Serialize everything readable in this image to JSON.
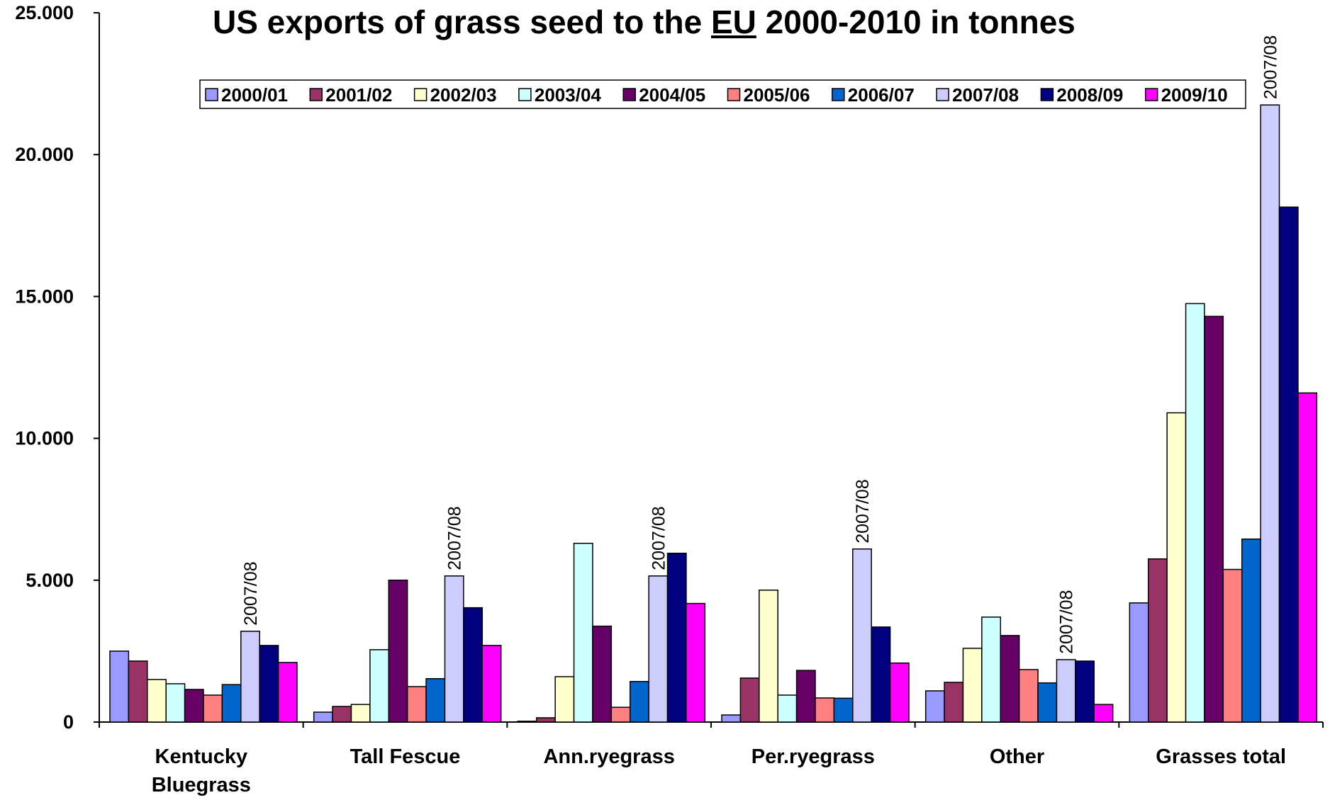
{
  "chart_data": {
    "type": "bar",
    "title": {
      "prefix": "US exports of grass seed to the ",
      "underlined": "EU",
      "suffix": " 2000-2010 in tonnes"
    },
    "xlabel": "",
    "ylabel": "",
    "ylim": [
      0,
      25000
    ],
    "y_ticks": [
      {
        "value": 0,
        "label": "0"
      },
      {
        "value": 5000,
        "label": "5.000"
      },
      {
        "value": 10000,
        "label": "10.000"
      },
      {
        "value": 15000,
        "label": "15.000"
      },
      {
        "value": 20000,
        "label": "20.000"
      },
      {
        "value": 25000,
        "label": "25.000"
      }
    ],
    "categories": [
      [
        "Kentucky",
        "Bluegrass"
      ],
      [
        "Tall Fescue"
      ],
      [
        "Ann.ryegrass"
      ],
      [
        "Per.ryegrass"
      ],
      [
        "Other"
      ],
      [
        "Grasses total"
      ]
    ],
    "legend_position": "top",
    "grid": false,
    "series": [
      {
        "name": "2000/01",
        "color": "#9999FF",
        "values": [
          2500,
          350,
          30,
          250,
          1100,
          4200
        ]
      },
      {
        "name": "2001/02",
        "color": "#993366",
        "values": [
          2150,
          550,
          150,
          1550,
          1400,
          5750
        ]
      },
      {
        "name": "2002/03",
        "color": "#FFFFCC",
        "values": [
          1500,
          620,
          1600,
          4650,
          2600,
          10900
        ]
      },
      {
        "name": "2003/04",
        "color": "#CCFFFF",
        "values": [
          1350,
          2550,
          6300,
          950,
          3700,
          14750
        ]
      },
      {
        "name": "2004/05",
        "color": "#660066",
        "values": [
          1150,
          5000,
          3380,
          1820,
          3050,
          14300
        ]
      },
      {
        "name": "2005/06",
        "color": "#FF8080",
        "values": [
          950,
          1250,
          520,
          850,
          1850,
          5380
        ]
      },
      {
        "name": "2006/07",
        "color": "#0066CC",
        "values": [
          1320,
          1530,
          1430,
          840,
          1380,
          6450
        ]
      },
      {
        "name": "2007/08",
        "color": "#CCCCFF",
        "values": [
          3200,
          5150,
          5150,
          6100,
          2200,
          21750
        ]
      },
      {
        "name": "2008/09",
        "color": "#000080",
        "values": [
          2700,
          4030,
          5950,
          3350,
          2150,
          18150
        ]
      },
      {
        "name": "2009/10",
        "color": "#FF00FF",
        "values": [
          2100,
          2700,
          4180,
          2080,
          620,
          11600
        ]
      }
    ],
    "annotations": [
      {
        "text": "2007/08",
        "series": "2007/08",
        "category_index": 0
      },
      {
        "text": "2007/08",
        "series": "2007/08",
        "category_index": 1
      },
      {
        "text": "2007/08",
        "series": "2007/08",
        "category_index": 2
      },
      {
        "text": "2007/08",
        "series": "2007/08",
        "category_index": 3
      },
      {
        "text": "2007/08",
        "series": "2007/08",
        "category_index": 4
      },
      {
        "text": "2007/08",
        "series": "2007/08",
        "category_index": 5
      }
    ]
  }
}
